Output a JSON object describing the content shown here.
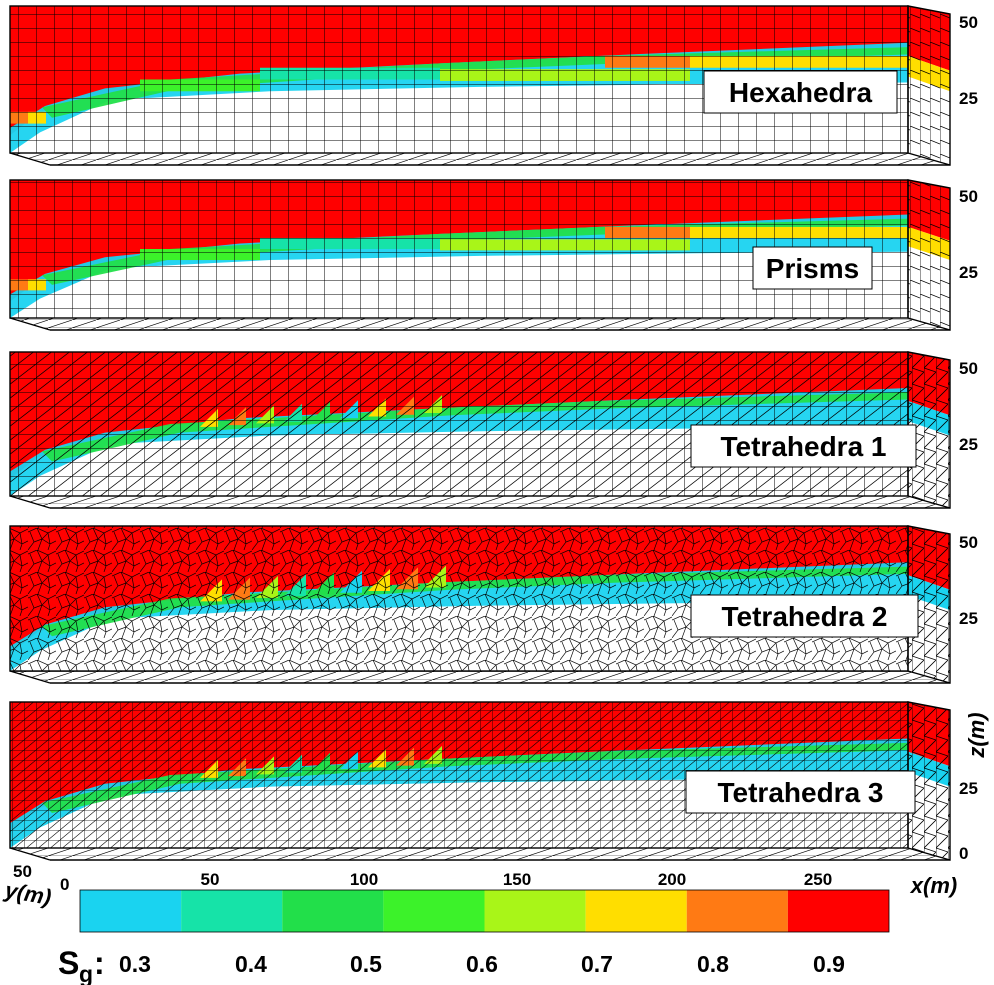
{
  "colors": {
    "red": "#ff0000",
    "white": "#ffffff",
    "cyan": "#1ad3f0",
    "sea_green": "#16e3a8",
    "green": "#22df4a",
    "bright_green": "#3cf22a",
    "lime": "#a9f518",
    "yellow": "#ffde00",
    "orange": "#ff7a14",
    "grid": "#000000"
  },
  "panels": [
    {
      "label": "Hexahedra",
      "mesh": "hexahedra",
      "z_ticks": [
        "50",
        "25"
      ]
    },
    {
      "label": "Prisms",
      "mesh": "prisms",
      "z_ticks": [
        "50",
        "25"
      ]
    },
    {
      "label": "Tetrahedra 1",
      "mesh": "tetrahedra-structured",
      "z_ticks": [
        "50",
        "25"
      ]
    },
    {
      "label": "Tetrahedra 2",
      "mesh": "tetrahedra-unstructured",
      "z_ticks": [
        "50",
        "25"
      ]
    },
    {
      "label": "Tetrahedra 3",
      "mesh": "tetrahedra-refined",
      "z_ticks": [
        "25",
        "0"
      ]
    }
  ],
  "axes": {
    "z_title": "z(m)",
    "x_title": "x(m)",
    "y_title": "y(m)",
    "x_ticks": [
      "50",
      "100",
      "150",
      "200",
      "250"
    ],
    "y_ticks": [
      "50",
      "0"
    ]
  },
  "legend": {
    "title_main": "S",
    "title_sub": "g",
    "title_colon": ":",
    "ticks": [
      "0.3",
      "0.4",
      "0.5",
      "0.6",
      "0.7",
      "0.8",
      "0.9"
    ],
    "colors": [
      "#1ad3f0",
      "#16e3a8",
      "#22df4a",
      "#3cf22a",
      "#a9f518",
      "#ffde00",
      "#ff7a14",
      "#ff0000"
    ]
  }
}
